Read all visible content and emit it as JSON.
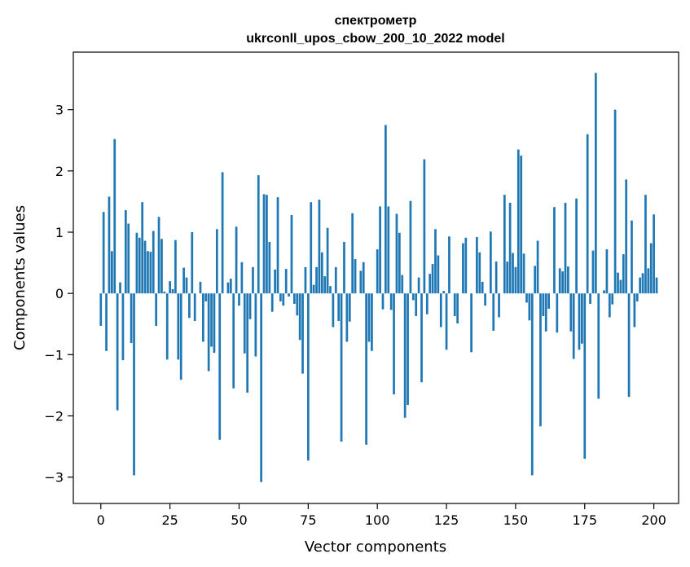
{
  "chart_data": {
    "type": "bar",
    "title_line1": "спектрометр",
    "title_line2": "ukrconll_upos_cbow_200_10_2022 model",
    "xlabel": "Vector components",
    "ylabel": "Components values",
    "xlim": [
      -9.95,
      208.95
    ],
    "ylim": [
      -3.43,
      3.94
    ],
    "x_ticks": [
      0,
      25,
      50,
      75,
      100,
      125,
      150,
      175,
      200
    ],
    "x_tick_labels": [
      "0",
      "25",
      "50",
      "75",
      "100",
      "125",
      "150",
      "175",
      "200"
    ],
    "y_ticks": [
      -3,
      -2,
      -1,
      0,
      1,
      2,
      3
    ],
    "y_tick_labels": [
      "−3",
      "−2",
      "−1",
      "0",
      "1",
      "2",
      "3"
    ],
    "bar_color": "#1f77b4",
    "values": [
      -0.53,
      1.33,
      -0.94,
      1.58,
      0.69,
      2.52,
      -1.91,
      0.18,
      -1.09,
      1.36,
      1.14,
      -0.81,
      -2.97,
      0.99,
      0.91,
      1.49,
      0.86,
      0.69,
      0.68,
      1.02,
      -0.53,
      1.25,
      0.89,
      0.03,
      -1.08,
      0.2,
      0.07,
      0.87,
      -1.08,
      -1.41,
      0.42,
      0.26,
      -0.4,
      1.0,
      -0.45,
      0.0,
      0.19,
      -0.79,
      -0.13,
      -1.27,
      -0.87,
      -0.97,
      1.05,
      -2.39,
      1.98,
      0.0,
      0.18,
      0.24,
      -1.55,
      1.09,
      -0.2,
      0.51,
      -0.98,
      -1.62,
      -0.42,
      0.43,
      -1.03,
      1.93,
      -3.08,
      1.62,
      1.61,
      0.84,
      -0.3,
      0.39,
      1.57,
      -0.13,
      -0.2,
      0.4,
      -0.05,
      1.28,
      -0.17,
      -0.36,
      -0.76,
      -1.31,
      0.43,
      -2.73,
      1.49,
      0.14,
      0.43,
      1.53,
      0.67,
      0.28,
      1.07,
      0.12,
      -0.55,
      0.43,
      -0.45,
      -2.42,
      0.84,
      -0.79,
      -0.46,
      1.31,
      0.56,
      0.0,
      0.37,
      0.51,
      -2.47,
      -0.79,
      -0.94,
      0.0,
      0.72,
      1.42,
      -0.26,
      2.75,
      1.42,
      -0.27,
      -1.65,
      1.3,
      0.99,
      0.3,
      -2.03,
      -1.82,
      1.51,
      -0.11,
      -0.37,
      0.26,
      -1.45,
      2.19,
      -0.34,
      0.32,
      0.48,
      1.05,
      0.62,
      -0.55,
      0.04,
      -0.92,
      0.93,
      0.0,
      -0.37,
      -0.49,
      0.0,
      0.82,
      0.91,
      0.0,
      -0.96,
      0.0,
      0.92,
      0.67,
      0.19,
      -0.2,
      0.0,
      1.01,
      -0.61,
      0.52,
      -0.39,
      0.0,
      1.61,
      0.52,
      1.48,
      0.66,
      0.43,
      2.35,
      2.25,
      0.65,
      -0.15,
      -0.44,
      -2.97,
      0.45,
      0.86,
      -2.17,
      -0.37,
      -0.62,
      -0.25,
      0.0,
      1.41,
      -0.64,
      0.41,
      0.36,
      1.48,
      0.44,
      -0.62,
      -1.07,
      1.55,
      -0.92,
      -0.82,
      -2.7,
      2.6,
      -0.17,
      0.7,
      3.6,
      -1.72,
      0.0,
      0.05,
      0.72,
      -0.39,
      -0.18,
      3.0,
      0.34,
      0.22,
      0.64,
      1.86,
      -1.69,
      1.19,
      -0.55,
      -0.13,
      0.26,
      0.33,
      1.61,
      0.41,
      0.82,
      1.29,
      0.26
    ]
  }
}
